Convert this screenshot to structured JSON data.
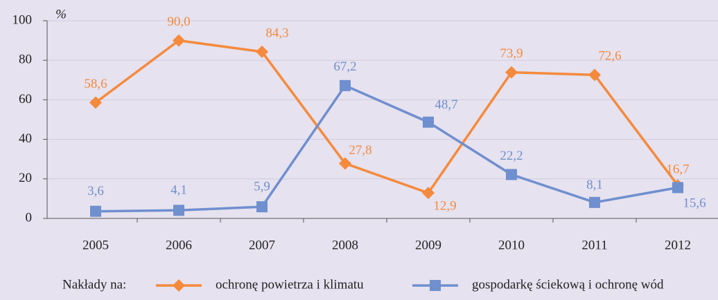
{
  "chart_data": {
    "type": "line",
    "y_label": "%",
    "categories": [
      "2005",
      "2006",
      "2007",
      "2008",
      "2009",
      "2010",
      "2011",
      "2012"
    ],
    "series": [
      {
        "name": "ochronę powietrza i klimatu",
        "color": "#f58a3c",
        "marker": "diamond",
        "values": [
          58.6,
          90.0,
          84.3,
          27.8,
          12.9,
          73.9,
          72.6,
          16.7
        ],
        "value_labels": [
          "58,6",
          "90,0",
          "84,3",
          "27,8",
          "12,9",
          "73,9",
          "72,6",
          "16,7"
        ]
      },
      {
        "name": "gospodarkę ściekową i ochronę wód",
        "color": "#6f8fcf",
        "marker": "square",
        "values": [
          3.6,
          4.1,
          5.9,
          67.2,
          48.7,
          22.2,
          8.1,
          15.6
        ],
        "value_labels": [
          "3,6",
          "4,1",
          "5,9",
          "67,2",
          "48,7",
          "22,2",
          "8,1",
          "15,6"
        ]
      }
    ],
    "legend_title": "Nakłady na:",
    "ylim": [
      0,
      100
    ],
    "yticks": [
      0,
      20,
      40,
      60,
      80,
      100
    ],
    "grid": true
  }
}
